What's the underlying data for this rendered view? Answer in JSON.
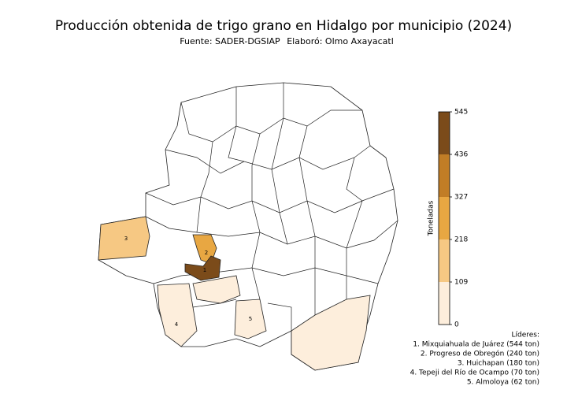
{
  "chart_data": {
    "type": "choropleth",
    "title": "Producción obtenida de trigo grano en Hidalgo por municipio (2024)",
    "subtitle": [
      "Fuente: SADER-DGSIAP",
      "Elaboró: Olmo Axayacatl"
    ],
    "colorbar": {
      "label": "Toneladas",
      "lim": [
        0,
        545
      ],
      "ticks": [
        0,
        109,
        218,
        327,
        436,
        545
      ],
      "colors": [
        "#fdeedc",
        "#f6c883",
        "#e8a742",
        "#c17d26",
        "#7b4b1a"
      ]
    },
    "regions": [
      {
        "label": "1",
        "value": 544
      },
      {
        "label": "2",
        "value": 240
      },
      {
        "label": "3",
        "value": 180
      },
      {
        "label": "4",
        "value": 70
      },
      {
        "label": "5",
        "value": 62
      }
    ],
    "leaders_title": "Líderes:",
    "leaders": [
      "1. Mixquiahuala de Juárez (544 ton)",
      "2. Progreso de Obregón (240 ton)",
      "3. Huichapan (180 ton)",
      "4. Tepeji del Río de Ocampo (70 ton)",
      "5. Almoloya (62 ton)"
    ]
  }
}
